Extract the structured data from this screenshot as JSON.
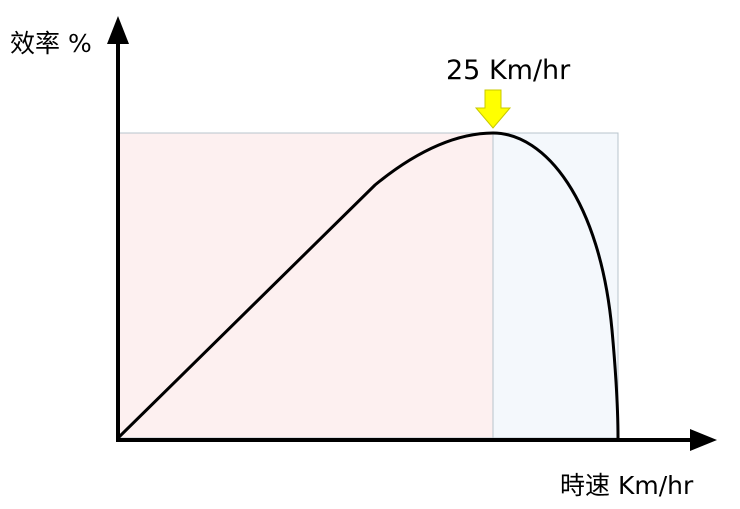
{
  "axes": {
    "y_label": "效率 %",
    "x_label": "時速 Km/hr"
  },
  "annotation": {
    "peak_label": "25 Km/hr",
    "arrow_color": "#ffff00"
  },
  "regions": {
    "left_color": "#fdf0f0",
    "right_color": "#f4f8fc"
  },
  "curve_color": "#000000"
}
